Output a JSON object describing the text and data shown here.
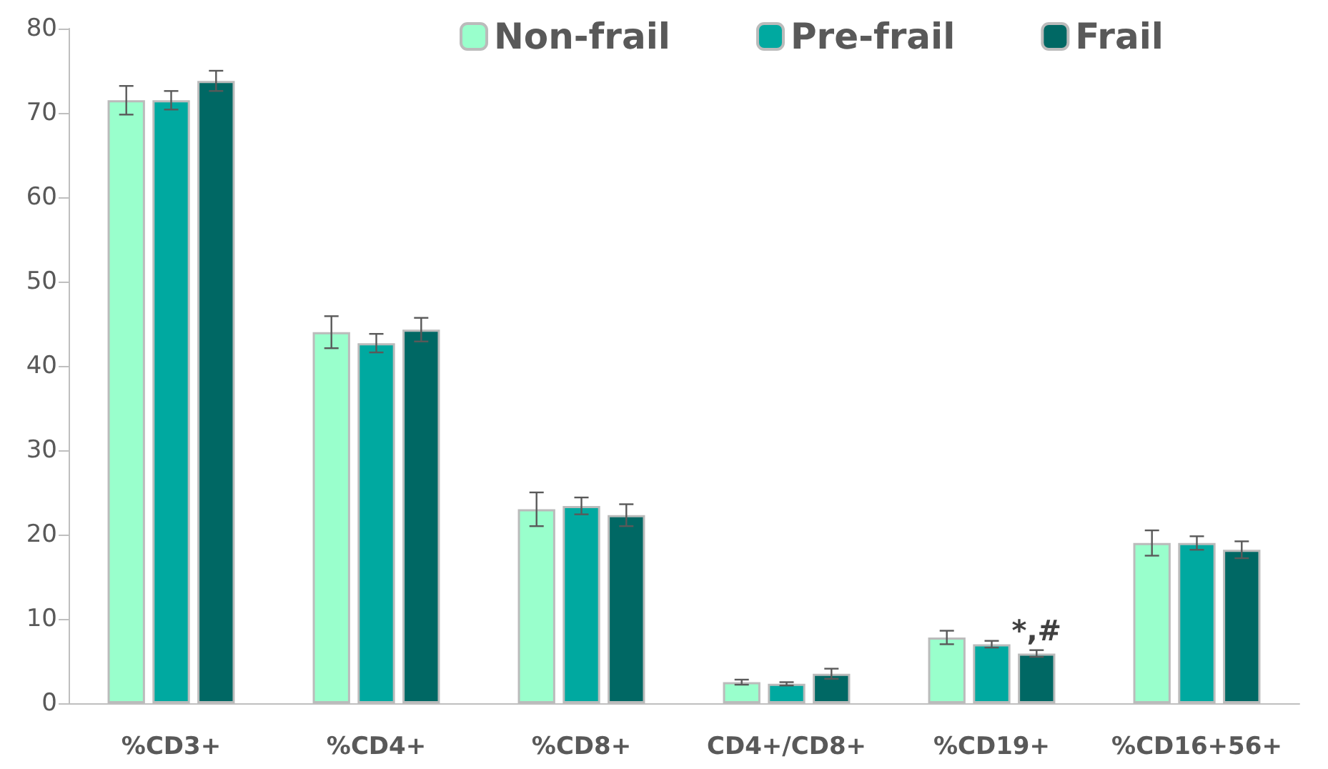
{
  "chart_data": {
    "type": "bar",
    "categories": [
      "%CD3+",
      "%CD4+",
      "%CD8+",
      "CD4+/CD8+",
      "%CD19+",
      "%CD16+56+"
    ],
    "series": [
      {
        "name": "Non-frail",
        "color": "#99ffcc",
        "values": [
          71.5,
          44,
          23,
          2.5,
          7.8,
          19
        ],
        "errors": [
          1.7,
          1.9,
          2,
          0.3,
          0.8,
          1.5
        ]
      },
      {
        "name": "Pre-frail",
        "color": "#00a9a0",
        "values": [
          71.5,
          42.7,
          23.4,
          2.3,
          7,
          19
        ],
        "errors": [
          1.1,
          1.1,
          1,
          0.2,
          0.4,
          0.8
        ]
      },
      {
        "name": "Frail",
        "color": "#006864",
        "values": [
          73.8,
          44.3,
          22.3,
          3.5,
          5.9,
          18.2
        ],
        "errors": [
          1.2,
          1.4,
          1.3,
          0.6,
          0.4,
          1
        ]
      }
    ],
    "ylim": [
      0,
      80
    ],
    "yticks": [
      0,
      10,
      20,
      30,
      40,
      50,
      60,
      70,
      80
    ],
    "annotations": [
      {
        "text": "*,#",
        "x": "%CD19+",
        "y": 6.3
      }
    ],
    "legend": "top right",
    "grid": false
  }
}
